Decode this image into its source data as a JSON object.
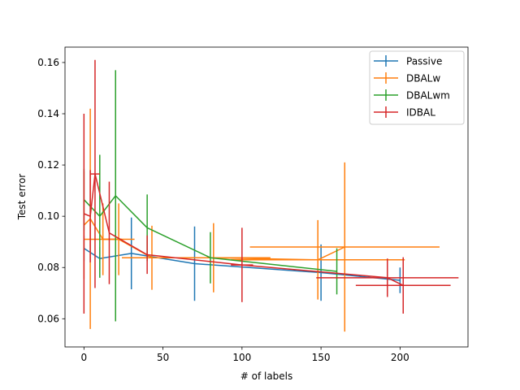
{
  "chart_data": {
    "type": "line",
    "title": "",
    "xlabel": "# of labels",
    "ylabel": "Test error",
    "xlim": [
      -12,
      243
    ],
    "ylim": [
      0.049,
      0.166
    ],
    "xticks": [
      0,
      50,
      100,
      150,
      200
    ],
    "yticks": [
      0.06,
      0.08,
      0.1,
      0.12,
      0.14,
      0.16
    ],
    "ytick_labels": [
      "0.06",
      "0.08",
      "0.10",
      "0.12",
      "0.14",
      "0.16"
    ],
    "grid": false,
    "legend_position": "top-right",
    "series": [
      {
        "name": "Passive",
        "color": "#1f77b4",
        "points": [
          {
            "x": 0,
            "y": 0.0875,
            "ye": 0.005,
            "xe": 0
          },
          {
            "x": 10,
            "y": 0.0835,
            "ye": 0.0045,
            "xe": 0
          },
          {
            "x": 30,
            "y": 0.0855,
            "ye": 0.014,
            "xe": 0
          },
          {
            "x": 70,
            "y": 0.0815,
            "ye": 0.0145,
            "xe": 0
          },
          {
            "x": 150,
            "y": 0.078,
            "ye": 0.011,
            "xe": 0
          },
          {
            "x": 200,
            "y": 0.075,
            "ye": 0.005,
            "xe": 0
          }
        ]
      },
      {
        "name": "DBALw",
        "color": "#ff7f0e",
        "points": [
          {
            "x": 0,
            "y": 0.0965,
            "ye": 0.021,
            "xe": 0
          },
          {
            "x": 4,
            "y": 0.099,
            "ye": 0.043,
            "xe": 0
          },
          {
            "x": 12,
            "y": 0.091,
            "ye": 0.014,
            "xe": 12
          },
          {
            "x": 22,
            "y": 0.091,
            "ye": 0.014,
            "xe": 10
          },
          {
            "x": 43,
            "y": 0.0838,
            "ye": 0.0125,
            "xe": 19
          },
          {
            "x": 82,
            "y": 0.0838,
            "ye": 0.0135,
            "xe": 36
          },
          {
            "x": 148,
            "y": 0.083,
            "ye": 0.0155,
            "xe": 55
          },
          {
            "x": 165,
            "y": 0.088,
            "ye": 0.033,
            "xe": 60
          }
        ]
      },
      {
        "name": "DBALwm",
        "color": "#2ca02c",
        "points": [
          {
            "x": 0,
            "y": 0.1065,
            "ye": 0.012,
            "xe": 0
          },
          {
            "x": 10,
            "y": 0.1,
            "ye": 0.024,
            "xe": 0
          },
          {
            "x": 20,
            "y": 0.108,
            "ye": 0.049,
            "xe": 0
          },
          {
            "x": 40,
            "y": 0.0955,
            "ye": 0.013,
            "xe": 0
          },
          {
            "x": 80,
            "y": 0.0838,
            "ye": 0.01,
            "xe": 0
          },
          {
            "x": 160,
            "y": 0.0785,
            "ye": 0.009,
            "xe": 0
          }
        ]
      },
      {
        "name": "IDBAL",
        "color": "#d62728",
        "points": [
          {
            "x": 0,
            "y": 0.101,
            "ye": 0.039,
            "xe": 0
          },
          {
            "x": 4,
            "y": 0.1,
            "ye": 0.018,
            "xe": 0
          },
          {
            "x": 7,
            "y": 0.1165,
            "ye": 0.0445,
            "xe": 3
          },
          {
            "x": 16,
            "y": 0.0935,
            "ye": 0.02,
            "xe": 0
          },
          {
            "x": 40,
            "y": 0.085,
            "ye": 0.0075,
            "xe": 0
          },
          {
            "x": 100,
            "y": 0.081,
            "ye": 0.0145,
            "xe": 7
          },
          {
            "x": 192,
            "y": 0.076,
            "ye": 0.0075,
            "xe": 45
          },
          {
            "x": 202,
            "y": 0.073,
            "ye": 0.011,
            "xe": 30
          }
        ]
      }
    ]
  }
}
